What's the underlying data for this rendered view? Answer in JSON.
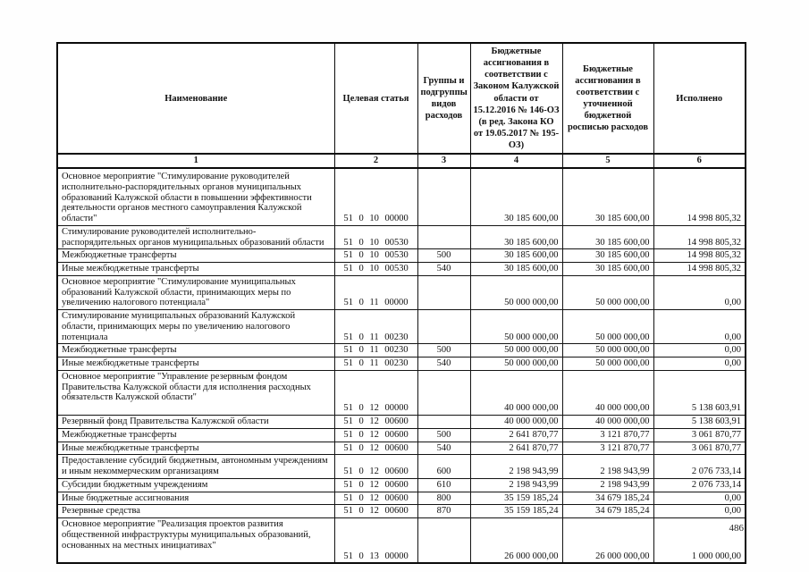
{
  "page_number": "486",
  "table": {
    "headers": [
      "Наименование",
      "Целевая статья",
      "Группы и подгруппы видов расходов",
      "Бюджетные ассигнования в соответствии с Законом Калужской области от 15.12.2016 № 146-ОЗ (в ред. Закона КО от 19.05.2017 № 195-ОЗ)",
      "Бюджетные ассигнования в соответствии с уточненной бюджетной росписью расходов",
      "Исполнено"
    ],
    "column_numbers": [
      "1",
      "2",
      "3",
      "4",
      "5",
      "6"
    ],
    "rows": [
      {
        "name": "Основное мероприятие \"Стимулирование руководителей исполнительно-распорядительных органов муниципальных образований Калужской области в повышении эффективности деятельности органов местного самоуправления Калужской области\"",
        "code": "51 0 10 00000",
        "group": "",
        "law": "30 185 600,00",
        "refined": "30 185 600,00",
        "executed": "14 998 805,32"
      },
      {
        "name": "Стимулирование руководителей исполнительно-распорядительных органов муниципальных образований области",
        "code": "51 0 10 00530",
        "group": "",
        "law": "30 185 600,00",
        "refined": "30 185 600,00",
        "executed": "14 998 805,32"
      },
      {
        "name": "Межбюджетные трансферты",
        "code": "51 0 10 00530",
        "group": "500",
        "law": "30 185 600,00",
        "refined": "30 185 600,00",
        "executed": "14 998 805,32"
      },
      {
        "name": "Иные межбюджетные трансферты",
        "code": "51 0 10 00530",
        "group": "540",
        "law": "30 185 600,00",
        "refined": "30 185 600,00",
        "executed": "14 998 805,32"
      },
      {
        "name": "Основное мероприятие \"Стимулирование муниципальных образований Калужской области, принимающих меры по увеличению налогового потенциала\"",
        "code": "51 0 11 00000",
        "group": "",
        "law": "50 000 000,00",
        "refined": "50 000 000,00",
        "executed": "0,00"
      },
      {
        "name": "Стимулирование муниципальных образований Калужской области, принимающих меры по увеличению налогового потенциала",
        "code": "51 0 11 00230",
        "group": "",
        "law": "50 000 000,00",
        "refined": "50 000 000,00",
        "executed": "0,00"
      },
      {
        "name": "Межбюджетные трансферты",
        "code": "51 0 11 00230",
        "group": "500",
        "law": "50 000 000,00",
        "refined": "50 000 000,00",
        "executed": "0,00"
      },
      {
        "name": "Иные межбюджетные трансферты",
        "code": "51 0 11 00230",
        "group": "540",
        "law": "50 000 000,00",
        "refined": "50 000 000,00",
        "executed": "0,00"
      },
      {
        "name": "Основное мероприятие \"Управление резервным фондом Правительства Калужской области для исполнения расходных обязательств Калужской области\"",
        "code": "51 0 12 00000",
        "group": "",
        "law": "40 000 000,00",
        "refined": "40 000 000,00",
        "executed": "5 138 603,91"
      },
      {
        "name": "Резервный фонд Правительства Калужской области",
        "code": "51 0 12 00600",
        "group": "",
        "law": "40 000 000,00",
        "refined": "40 000 000,00",
        "executed": "5 138 603,91"
      },
      {
        "name": "Межбюджетные трансферты",
        "code": "51 0 12 00600",
        "group": "500",
        "law": "2 641 870,77",
        "refined": "3 121 870,77",
        "executed": "3 061 870,77"
      },
      {
        "name": "Иные межбюджетные трансферты",
        "code": "51 0 12 00600",
        "group": "540",
        "law": "2 641 870,77",
        "refined": "3 121 870,77",
        "executed": "3 061 870,77"
      },
      {
        "name": "Предоставление субсидий бюджетным, автономным учреждениям и иным некоммерческим организациям",
        "code": "51 0 12 00600",
        "group": "600",
        "law": "2 198 943,99",
        "refined": "2 198 943,99",
        "executed": "2 076 733,14"
      },
      {
        "name": "Субсидии бюджетным учреждениям",
        "code": "51 0 12 00600",
        "group": "610",
        "law": "2 198 943,99",
        "refined": "2 198 943,99",
        "executed": "2 076 733,14"
      },
      {
        "name": "Иные бюджетные ассигнования",
        "code": "51 0 12 00600",
        "group": "800",
        "law": "35 159 185,24",
        "refined": "34 679 185,24",
        "executed": "0,00"
      },
      {
        "name": "Резервные средства",
        "code": "51 0 12 00600",
        "group": "870",
        "law": "35 159 185,24",
        "refined": "34 679 185,24",
        "executed": "0,00"
      },
      {
        "name": "Основное мероприятие \"Реализация проектов развития общественной инфраструктуры муниципальных образований, основанных на местных инициативах\"",
        "code": "51 0 13 00000",
        "group": "",
        "law": "26 000 000,00",
        "refined": "26 000 000,00",
        "executed": "1 000 000,00"
      }
    ]
  }
}
